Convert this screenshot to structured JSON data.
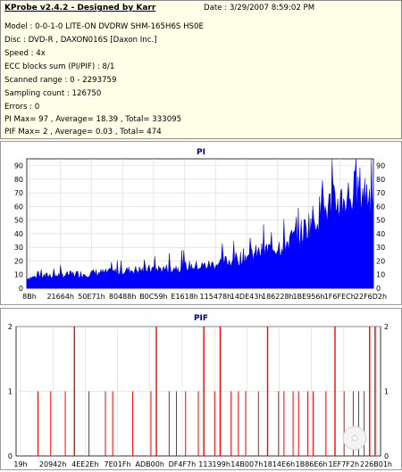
{
  "info": {
    "title": "KProbe v2.4.2 - Designed by Karr",
    "date": "Date : 3/29/2007 8:59:02 PM",
    "lines": [
      "Model : 0-0-1-0 LITE-ON DVDRW SHM-165H6S HS0E",
      "Disc : DVD-R , DAXON016S [Daxon Inc.]",
      "Speed : 4x",
      "ECC blocks sum (PI/PIF) : 8/1",
      "Scanned range : 0 - 2293759",
      "Sampling count : 126750",
      "Errors : 0",
      "PI Max= 97 , Average= 18.39 , Total= 333095",
      "PIF Max= 2 , Average= 0.03 , Total= 474"
    ]
  },
  "chart_data": [
    {
      "type": "area",
      "title": "PI",
      "ylim": [
        0,
        95
      ],
      "yticks": [
        0,
        10,
        20,
        30,
        40,
        50,
        60,
        70,
        80,
        90
      ],
      "xticks": [
        "8Bh",
        "21664h",
        "50E71h",
        "80488h",
        "B0C59h",
        "E1618h",
        "115478h",
        "14DE43h",
        "186228h",
        "1BE956h",
        "1F6FECh",
        "22F6D2h"
      ],
      "color": "#0000ff",
      "series": [
        {
          "values": [
            8,
            9,
            10,
            10,
            11,
            11,
            12,
            12,
            13,
            14,
            14,
            15,
            15,
            16,
            17,
            17,
            18,
            20,
            22,
            25,
            27,
            30,
            33,
            38,
            45,
            55,
            62,
            67,
            72,
            76,
            70
          ]
        }
      ]
    },
    {
      "type": "bar",
      "title": "PIF",
      "ylim": [
        0,
        2
      ],
      "yticks": [
        0,
        1,
        2
      ],
      "xticks": [
        "19h",
        "20942h",
        "4EE2Eh",
        "7E01Fh",
        "ADB00h",
        "DF4F7h",
        "113199h",
        "14B007h",
        "1814E6h",
        "1B86E6h",
        "1EF7F2h",
        "226B01h"
      ],
      "color": "#ff0000",
      "positions": [
        0.06,
        0.095,
        0.135,
        0.16,
        0.2,
        0.245,
        0.265,
        0.32,
        0.37,
        0.385,
        0.42,
        0.44,
        0.465,
        0.5,
        0.515,
        0.545,
        0.56,
        0.59,
        0.61,
        0.63,
        0.665,
        0.69,
        0.72,
        0.735,
        0.76,
        0.775,
        0.8,
        0.815,
        0.85,
        0.875,
        0.9,
        0.925,
        0.94,
        0.955,
        0.97,
        0.985
      ],
      "values": [
        1,
        1,
        1,
        2,
        1,
        1,
        1,
        1,
        1,
        2,
        1,
        1,
        1,
        1,
        2,
        1,
        2,
        1,
        1,
        1,
        1,
        2,
        1,
        1,
        1,
        1,
        1,
        1,
        1,
        2,
        1,
        1,
        1,
        1,
        2,
        2
      ]
    }
  ]
}
